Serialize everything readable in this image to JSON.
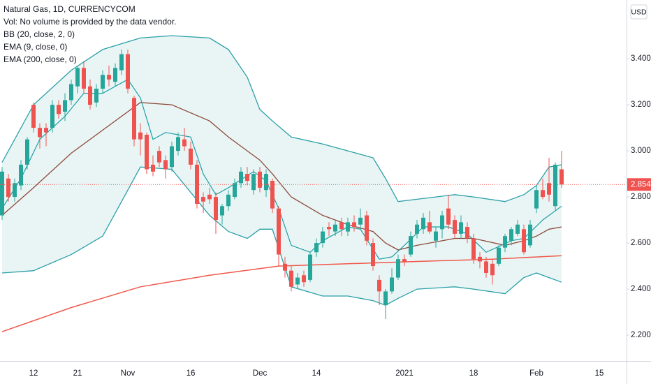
{
  "chart_data": {
    "type": "candlestick",
    "title": "Natural Gas, 1D, CURRENCYCOM",
    "notes": [
      "Vol: No volume is provided by the data vendor."
    ],
    "currency": "USD",
    "categories": [
      null,
      null,
      null,
      null,
      null,
      "12",
      null,
      null,
      null,
      null,
      null,
      null,
      "21",
      null,
      null,
      null,
      null,
      null,
      null,
      null,
      "Nov",
      null,
      null,
      null,
      null,
      null,
      null,
      null,
      null,
      null,
      "16",
      null,
      null,
      null,
      null,
      null,
      null,
      null,
      null,
      null,
      null,
      "Dec",
      null,
      null,
      null,
      null,
      null,
      null,
      null,
      null,
      "14",
      null,
      null,
      null,
      null,
      null,
      null,
      null,
      null,
      null,
      null,
      null,
      null,
      null,
      "2021",
      null,
      null,
      null,
      null,
      null,
      null,
      null,
      null,
      null,
      null,
      "18",
      null,
      null,
      null,
      null,
      null,
      null,
      null,
      null,
      null,
      "Feb",
      null,
      null,
      null,
      null,
      null,
      null,
      null,
      null,
      null,
      "15",
      null,
      null,
      null,
      null
    ],
    "open": [
      2.72,
      2.88,
      2.8,
      2.85,
      2.94,
      3.2,
      3.1,
      3.1,
      3.1,
      3.2,
      3.17,
      3.22,
      3.28,
      3.36,
      3.28,
      3.21,
      3.27,
      3.33,
      3.3,
      3.35,
      3.42,
      3.23,
      3.08,
      3.07,
      2.94,
      3.0,
      2.96,
      2.93,
      3.0,
      3.05,
      3.01,
      2.94,
      2.8,
      2.81,
      2.8,
      2.72,
      2.76,
      2.8,
      2.86,
      2.9,
      2.83,
      2.91,
      2.83,
      2.87,
      2.75,
      2.51,
      2.48,
      2.42,
      2.46,
      2.44,
      2.56,
      2.6,
      2.67,
      2.65,
      2.69,
      2.65,
      2.69,
      2.68,
      2.72,
      2.6,
      2.44,
      2.33,
      2.39,
      2.45,
      2.53,
      2.55,
      2.64,
      2.66,
      2.69,
      2.61,
      2.66,
      2.75,
      2.7,
      2.64,
      2.67,
      2.62,
      2.54,
      2.52,
      2.51,
      2.51,
      2.58,
      2.61,
      2.64,
      2.66,
      2.59,
      2.75,
      2.83,
      2.86,
      2.76,
      2.92,
      null,
      null,
      null,
      null,
      null,
      null,
      null,
      null,
      null,
      null
    ],
    "high": [
      2.93,
      2.9,
      2.88,
      2.96,
      3.06,
      3.21,
      3.12,
      3.12,
      3.22,
      3.22,
      3.25,
      3.31,
      3.37,
      3.39,
      3.31,
      3.29,
      3.35,
      3.37,
      3.38,
      3.44,
      3.44,
      3.24,
      3.12,
      3.08,
      2.98,
      3.02,
      2.98,
      3.04,
      3.08,
      3.1,
      3.04,
      2.96,
      2.82,
      2.84,
      2.82,
      2.77,
      2.83,
      2.88,
      2.93,
      2.93,
      2.92,
      2.93,
      2.92,
      2.88,
      2.76,
      2.54,
      2.5,
      2.47,
      2.48,
      2.56,
      2.62,
      2.67,
      2.69,
      2.7,
      2.71,
      2.71,
      2.72,
      2.75,
      2.74,
      2.62,
      2.46,
      2.4,
      2.49,
      2.55,
      2.55,
      2.65,
      2.7,
      2.73,
      2.74,
      2.67,
      2.74,
      2.81,
      2.72,
      2.72,
      2.69,
      2.64,
      2.56,
      2.54,
      2.53,
      2.59,
      2.64,
      2.67,
      2.7,
      2.68,
      2.7,
      2.85,
      2.88,
      2.97,
      2.95,
      3.0,
      null,
      null,
      null,
      null,
      null,
      null,
      null,
      null,
      null,
      null
    ],
    "low": [
      2.7,
      2.78,
      2.78,
      2.83,
      2.92,
      3.08,
      3.01,
      3.02,
      3.08,
      3.14,
      3.13,
      3.2,
      3.25,
      3.25,
      3.18,
      3.19,
      3.25,
      3.28,
      3.28,
      3.33,
      3.25,
      3.02,
      2.98,
      2.9,
      2.89,
      2.93,
      2.88,
      2.91,
      2.98,
      3.0,
      2.92,
      2.75,
      2.73,
      2.77,
      2.64,
      2.68,
      2.74,
      2.79,
      2.84,
      2.85,
      2.81,
      2.82,
      2.8,
      2.73,
      2.5,
      2.45,
      2.39,
      2.4,
      2.41,
      2.43,
      2.54,
      2.58,
      2.63,
      2.63,
      2.63,
      2.63,
      2.65,
      2.66,
      2.59,
      2.48,
      2.33,
      2.27,
      2.38,
      2.44,
      2.5,
      2.54,
      2.62,
      2.64,
      2.64,
      2.58,
      2.62,
      2.66,
      2.62,
      2.62,
      2.6,
      2.51,
      2.49,
      2.45,
      2.42,
      2.5,
      2.56,
      2.59,
      2.63,
      2.55,
      2.58,
      2.73,
      2.79,
      2.78,
      2.74,
      2.84,
      null,
      null,
      null,
      null,
      null,
      null,
      null,
      null,
      null,
      null
    ],
    "close": [
      2.91,
      2.8,
      2.86,
      2.94,
      3.05,
      3.1,
      3.06,
      3.08,
      3.2,
      3.16,
      3.22,
      3.29,
      3.36,
      3.27,
      3.2,
      3.27,
      3.33,
      3.31,
      3.36,
      3.42,
      3.27,
      3.05,
      3.05,
      2.92,
      2.91,
      2.95,
      2.92,
      3.02,
      3.06,
      3.02,
      2.94,
      2.77,
      2.78,
      2.79,
      2.7,
      2.76,
      2.81,
      2.86,
      2.91,
      2.87,
      2.9,
      2.84,
      2.9,
      2.75,
      2.55,
      2.48,
      2.41,
      2.45,
      2.43,
      2.55,
      2.6,
      2.65,
      2.66,
      2.68,
      2.66,
      2.69,
      2.67,
      2.71,
      2.61,
      2.5,
      2.39,
      2.39,
      2.45,
      2.53,
      2.52,
      2.63,
      2.68,
      2.71,
      2.65,
      2.65,
      2.72,
      2.68,
      2.64,
      2.69,
      2.62,
      2.53,
      2.52,
      2.47,
      2.46,
      2.58,
      2.63,
      2.66,
      2.68,
      2.56,
      2.68,
      2.83,
      2.8,
      2.81,
      2.94,
      2.854,
      null,
      null,
      null,
      null,
      null,
      null,
      null,
      null,
      null,
      null
    ],
    "up_color": "#26a69a",
    "down_color": "#ef5350",
    "last_price": 2.854,
    "ylim": [
      2.088,
      3.655
    ],
    "yticks": [
      {
        "value": 2.2,
        "label": "2.200"
      },
      {
        "value": 2.4,
        "label": "2.400"
      },
      {
        "value": 2.6,
        "label": "2.600"
      },
      {
        "value": 2.8,
        "label": "2.800"
      },
      {
        "value": 3.0,
        "label": "3.000"
      },
      {
        "value": 3.2,
        "label": "3.200"
      },
      {
        "value": 3.4,
        "label": "3.400"
      }
    ],
    "indicators": [
      {
        "name": "BB (20, close, 2, 0)",
        "color": "#2a9fa8",
        "basis_color": "#8d4a3c",
        "fill": "#e9f5f4",
        "x": [
          0,
          5,
          11,
          16,
          22,
          27,
          33,
          36,
          39,
          41,
          43,
          46,
          51,
          55,
          59,
          61,
          63,
          66,
          72,
          75,
          80,
          83,
          85,
          87,
          89
        ],
        "upper": [
          2.95,
          3.2,
          3.35,
          3.44,
          3.49,
          3.5,
          3.49,
          3.44,
          3.32,
          3.18,
          3.13,
          3.06,
          3.03,
          3.0,
          2.97,
          2.88,
          2.78,
          2.79,
          2.81,
          2.8,
          2.78,
          2.81,
          2.85,
          2.93,
          2.94
        ],
        "basis": [
          2.72,
          2.84,
          2.99,
          3.09,
          3.21,
          3.2,
          3.13,
          3.06,
          3.0,
          2.96,
          2.9,
          2.8,
          2.72,
          2.68,
          2.65,
          2.6,
          2.57,
          2.59,
          2.62,
          2.62,
          2.59,
          2.61,
          2.63,
          2.66,
          2.67
        ],
        "lower": [
          2.47,
          2.48,
          2.55,
          2.63,
          2.93,
          2.92,
          2.72,
          2.65,
          2.62,
          2.66,
          2.66,
          2.41,
          2.37,
          2.37,
          2.35,
          2.33,
          2.36,
          2.4,
          2.41,
          2.4,
          2.38,
          2.45,
          2.47,
          2.45,
          2.43
        ]
      },
      {
        "name": "EMA (9, close, 0)",
        "color": "#1e9fa6",
        "x": [
          0,
          3,
          6,
          10,
          13,
          16,
          20,
          22,
          24,
          26,
          30,
          32,
          34,
          36,
          40,
          42,
          44,
          46,
          49,
          51,
          55,
          57,
          60,
          62,
          64,
          67,
          71,
          74,
          77,
          81,
          83,
          86,
          89
        ],
        "values": [
          2.75,
          2.88,
          3.05,
          3.15,
          3.25,
          3.25,
          3.31,
          3.23,
          3.05,
          3.08,
          3.06,
          2.9,
          2.81,
          2.84,
          2.91,
          2.87,
          2.75,
          2.59,
          2.56,
          2.61,
          2.67,
          2.66,
          2.53,
          2.54,
          2.59,
          2.67,
          2.67,
          2.64,
          2.56,
          2.61,
          2.62,
          2.7,
          2.76
        ]
      },
      {
        "name": "EMA (200, close, 0)",
        "color": "#f0574a",
        "x": [
          0,
          11,
          22,
          33,
          44,
          55,
          66,
          78,
          89
        ],
        "values": [
          2.215,
          2.32,
          2.41,
          2.46,
          2.5,
          2.51,
          2.52,
          2.53,
          2.545
        ]
      }
    ]
  }
}
